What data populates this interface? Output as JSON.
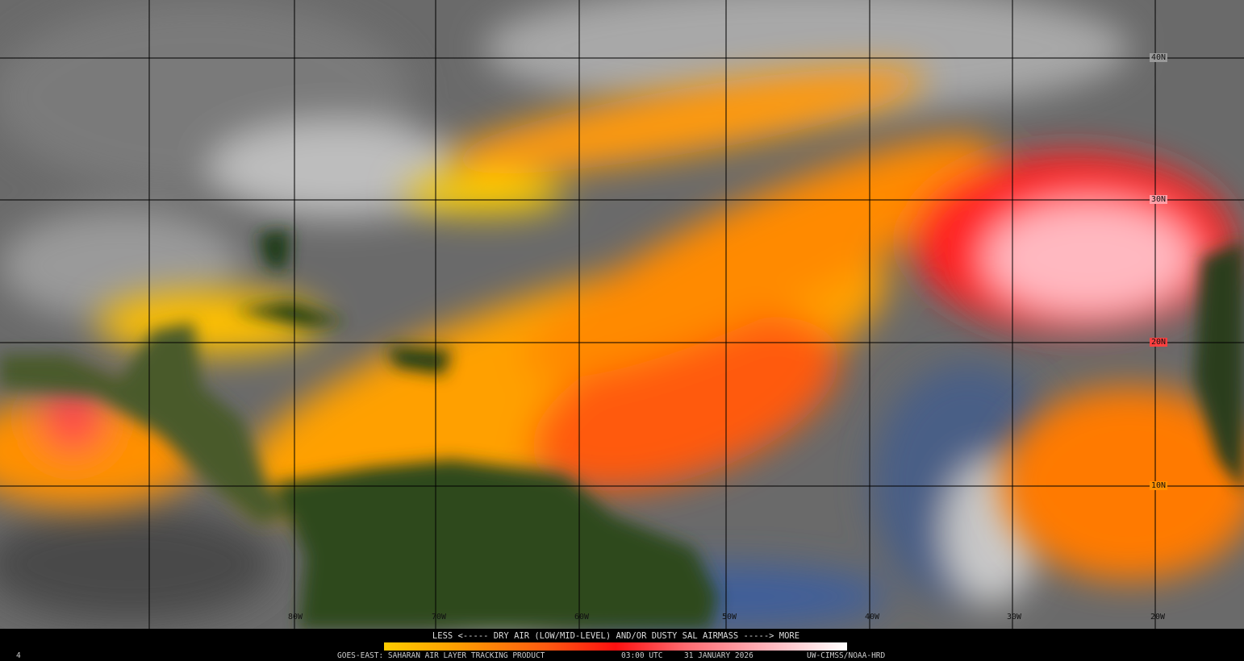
{
  "map": {
    "product": "SAHARAN AIR LAYER TRACKING PRODUCT",
    "latitude_labels": [
      "40N",
      "30N",
      "20N",
      "10N"
    ],
    "longitude_labels": [
      "80W",
      "70W",
      "60W",
      "50W",
      "40W",
      "30W",
      "20W"
    ]
  },
  "legend": {
    "title": "LESS <----- DRY AIR (LOW/MID-LEVEL) AND/OR DUSTY SAL AIRMASS -----> MORE",
    "colors": [
      "#ffcc00",
      "#ffa000",
      "#ff5a10",
      "#ff1010",
      "#ff6a70",
      "#ffb0b8",
      "#ffffff"
    ]
  },
  "footer": {
    "index": "4",
    "satellite_product": "GOES-EAST: SAHARAN AIR LAYER TRACKING PRODUCT",
    "time": "03:00 UTC",
    "date": "31 JANUARY 2026",
    "credit": "UW-CIMSS/NOAA-HRD"
  }
}
